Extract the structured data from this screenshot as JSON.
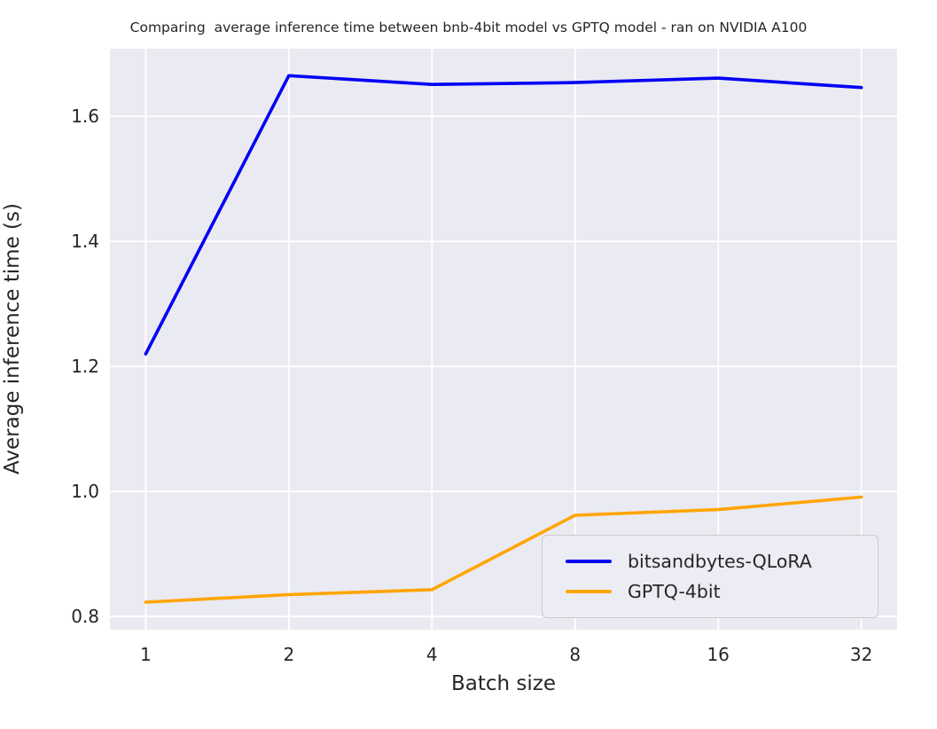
{
  "title": "Comparing  average inference time between bnb-4bit model vs GPTQ model - ran on NVIDIA A100",
  "chart_data": {
    "type": "line",
    "title": "Comparing  average inference time between bnb-4bit model vs GPTQ model - ran on NVIDIA A100",
    "xlabel": "Batch size",
    "ylabel": "Average inference time (s)",
    "categories": [
      "1",
      "2",
      "4",
      "8",
      "16",
      "32"
    ],
    "series": [
      {
        "name": "bitsandbytes-QLoRA",
        "color": "#0000f5",
        "values": [
          1.22,
          1.665,
          1.651,
          1.654,
          1.661,
          1.646
        ]
      },
      {
        "name": "GPTQ-4bit",
        "color": "#ffa500",
        "values": [
          0.823,
          0.835,
          0.843,
          0.962,
          0.971,
          0.991
        ]
      }
    ],
    "yticks": [
      0.8,
      1.0,
      1.2,
      1.4,
      1.6
    ],
    "ytick_labels": [
      "0.8",
      "1.0",
      "1.2",
      "1.4",
      "1.6"
    ],
    "ylim": [
      0.779,
      1.708
    ],
    "x_margin": 0.25,
    "grid": true,
    "legend_position": "lower right",
    "plot_background": "#eaeaf2",
    "gridline_color": "#ffffff",
    "text_color": "#262626"
  }
}
